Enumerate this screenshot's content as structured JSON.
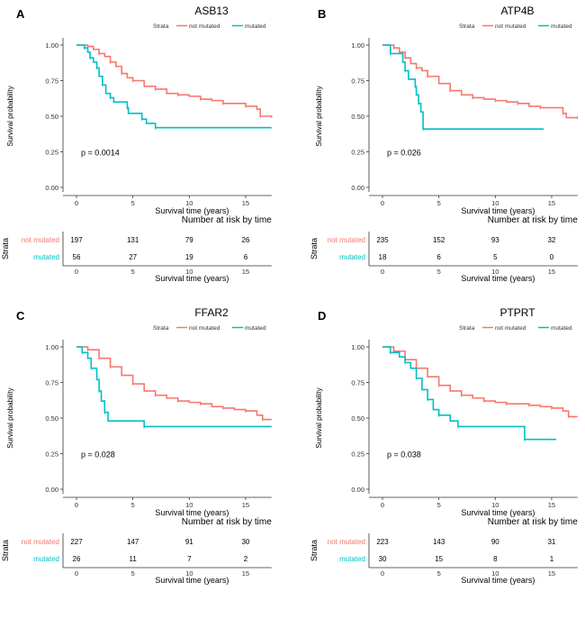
{
  "chart_data": [
    {
      "type": "line",
      "panel_label": "A",
      "title": "ASB13",
      "legend_title": "Strata",
      "legend": [
        "not mutated",
        "mutated"
      ],
      "legend_position": "top-right",
      "xlabel": "Survival time (years)",
      "ylabel": "Survival probability",
      "xticks": [
        0,
        5,
        10,
        15
      ],
      "yticks": [
        "0.00",
        "0.25",
        "0.50",
        "0.75",
        "1.00"
      ],
      "xlim": [
        0,
        17.3
      ],
      "ylim": [
        0,
        1
      ],
      "pvalue": "p = 0.0014",
      "risk_title": "Number at risk by time",
      "risk_ylabel": "Strata",
      "series": [
        {
          "name": "not mutated",
          "color": "#F8766D",
          "risk": [
            197,
            131,
            79,
            26
          ],
          "points": [
            [
              0,
              1
            ],
            [
              1,
              0.99
            ],
            [
              1.5,
              0.97
            ],
            [
              2,
              0.94
            ],
            [
              2.5,
              0.92
            ],
            [
              3,
              0.88
            ],
            [
              3.5,
              0.85
            ],
            [
              4,
              0.8
            ],
            [
              4.5,
              0.77
            ],
            [
              5,
              0.75
            ],
            [
              6,
              0.71
            ],
            [
              7,
              0.69
            ],
            [
              8,
              0.66
            ],
            [
              9,
              0.65
            ],
            [
              10,
              0.64
            ],
            [
              11,
              0.62
            ],
            [
              12,
              0.61
            ],
            [
              13,
              0.59
            ],
            [
              14,
              0.59
            ],
            [
              15,
              0.57
            ],
            [
              16,
              0.55
            ],
            [
              16.3,
              0.5
            ],
            [
              17.3,
              0.49
            ]
          ]
        },
        {
          "name": "mutated",
          "color": "#00BFC4",
          "risk": [
            56,
            27,
            19,
            6
          ],
          "points": [
            [
              0,
              1
            ],
            [
              0.7,
              0.98
            ],
            [
              1,
              0.95
            ],
            [
              1.2,
              0.91
            ],
            [
              1.5,
              0.88
            ],
            [
              1.8,
              0.84
            ],
            [
              2,
              0.78
            ],
            [
              2.3,
              0.72
            ],
            [
              2.6,
              0.66
            ],
            [
              3,
              0.63
            ],
            [
              3.3,
              0.6
            ],
            [
              4.5,
              0.56
            ],
            [
              4.6,
              0.52
            ],
            [
              5.8,
              0.48
            ],
            [
              6.2,
              0.45
            ],
            [
              7,
              0.42
            ],
            [
              17.3,
              0.42
            ]
          ]
        }
      ]
    },
    {
      "type": "line",
      "panel_label": "B",
      "title": "ATP4B",
      "legend_title": "Strata",
      "legend": [
        "not mutated",
        "mutated"
      ],
      "legend_position": "top-right",
      "xlabel": "Survival time (years)",
      "ylabel": "Survival probability",
      "xticks": [
        0,
        5,
        10,
        15
      ],
      "yticks": [
        "0.00",
        "0.25",
        "0.50",
        "0.75",
        "1.00"
      ],
      "xlim": [
        0,
        17.3
      ],
      "ylim": [
        0,
        1
      ],
      "pvalue": "p = 0.026",
      "risk_title": "Number at risk by time",
      "risk_ylabel": "Strata",
      "series": [
        {
          "name": "not mutated",
          "color": "#F8766D",
          "risk": [
            235,
            152,
            93,
            32
          ],
          "points": [
            [
              0,
              1
            ],
            [
              1,
              0.98
            ],
            [
              1.5,
              0.95
            ],
            [
              2,
              0.91
            ],
            [
              2.5,
              0.87
            ],
            [
              3,
              0.84
            ],
            [
              3.5,
              0.82
            ],
            [
              4,
              0.78
            ],
            [
              5,
              0.73
            ],
            [
              6,
              0.68
            ],
            [
              7,
              0.65
            ],
            [
              8,
              0.63
            ],
            [
              9,
              0.62
            ],
            [
              10,
              0.61
            ],
            [
              11,
              0.6
            ],
            [
              12,
              0.59
            ],
            [
              13,
              0.57
            ],
            [
              14,
              0.56
            ],
            [
              15,
              0.56
            ],
            [
              16,
              0.52
            ],
            [
              16.3,
              0.49
            ],
            [
              17.3,
              0.49
            ]
          ]
        },
        {
          "name": "mutated",
          "color": "#00BFC4",
          "risk": [
            18,
            6,
            5,
            0
          ],
          "points": [
            [
              0,
              1
            ],
            [
              0.7,
              0.94
            ],
            [
              1.8,
              0.88
            ],
            [
              2,
              0.82
            ],
            [
              2.3,
              0.76
            ],
            [
              2.9,
              0.71
            ],
            [
              3,
              0.65
            ],
            [
              3.2,
              0.59
            ],
            [
              3.4,
              0.53
            ],
            [
              3.6,
              0.41
            ],
            [
              14.3,
              0.41
            ]
          ]
        }
      ]
    },
    {
      "type": "line",
      "panel_label": "C",
      "title": "FFAR2",
      "legend_title": "Strata",
      "legend": [
        "not mutated",
        "mutated"
      ],
      "legend_position": "top-right",
      "xlabel": "Survival time (years)",
      "ylabel": "Survival probability",
      "xticks": [
        0,
        5,
        10,
        15
      ],
      "yticks": [
        "0.00",
        "0.25",
        "0.50",
        "0.75",
        "1.00"
      ],
      "xlim": [
        0,
        17.3
      ],
      "ylim": [
        0,
        1
      ],
      "pvalue": "p = 0.028",
      "risk_title": "Number at risk by time",
      "risk_ylabel": "Strata",
      "series": [
        {
          "name": "not mutated",
          "color": "#F8766D",
          "risk": [
            227,
            147,
            91,
            30
          ],
          "points": [
            [
              0,
              1
            ],
            [
              1,
              0.98
            ],
            [
              2,
              0.92
            ],
            [
              3,
              0.86
            ],
            [
              4,
              0.8
            ],
            [
              5,
              0.74
            ],
            [
              6,
              0.69
            ],
            [
              7,
              0.66
            ],
            [
              8,
              0.64
            ],
            [
              9,
              0.62
            ],
            [
              10,
              0.61
            ],
            [
              11,
              0.6
            ],
            [
              12,
              0.58
            ],
            [
              13,
              0.57
            ],
            [
              14,
              0.56
            ],
            [
              15,
              0.55
            ],
            [
              16,
              0.52
            ],
            [
              16.5,
              0.49
            ],
            [
              17.3,
              0.49
            ]
          ]
        },
        {
          "name": "mutated",
          "color": "#00BFC4",
          "risk": [
            26,
            11,
            7,
            2
          ],
          "points": [
            [
              0,
              1
            ],
            [
              0.5,
              0.96
            ],
            [
              1,
              0.92
            ],
            [
              1.3,
              0.85
            ],
            [
              1.8,
              0.77
            ],
            [
              2,
              0.69
            ],
            [
              2.2,
              0.62
            ],
            [
              2.5,
              0.54
            ],
            [
              2.8,
              0.48
            ],
            [
              6,
              0.44
            ],
            [
              17.3,
              0.44
            ]
          ]
        }
      ]
    },
    {
      "type": "line",
      "panel_label": "D",
      "title": "PTPRT",
      "legend_title": "Strata",
      "legend": [
        "not mutated",
        "mutated"
      ],
      "legend_position": "top-right",
      "xlabel": "Survival time (years)",
      "ylabel": "Survival probability",
      "xticks": [
        0,
        5,
        10,
        15
      ],
      "yticks": [
        "0.00",
        "0.25",
        "0.50",
        "0.75",
        "1.00"
      ],
      "xlim": [
        0,
        17.3
      ],
      "ylim": [
        0,
        1
      ],
      "pvalue": "p = 0.038",
      "risk_title": "Number at risk by time",
      "risk_ylabel": "Strata",
      "series": [
        {
          "name": "not mutated",
          "color": "#F8766D",
          "risk": [
            223,
            143,
            90,
            31
          ],
          "points": [
            [
              0,
              1
            ],
            [
              1,
              0.97
            ],
            [
              2,
              0.91
            ],
            [
              3,
              0.85
            ],
            [
              4,
              0.79
            ],
            [
              5,
              0.73
            ],
            [
              6,
              0.69
            ],
            [
              7,
              0.66
            ],
            [
              8,
              0.64
            ],
            [
              9,
              0.62
            ],
            [
              10,
              0.61
            ],
            [
              11,
              0.6
            ],
            [
              12,
              0.6
            ],
            [
              13,
              0.59
            ],
            [
              14,
              0.58
            ],
            [
              15,
              0.57
            ],
            [
              16,
              0.55
            ],
            [
              16.5,
              0.51
            ],
            [
              17.3,
              0.51
            ]
          ]
        },
        {
          "name": "mutated",
          "color": "#00BFC4",
          "risk": [
            30,
            15,
            8,
            1
          ],
          "points": [
            [
              0,
              1
            ],
            [
              0.7,
              0.96
            ],
            [
              1.5,
              0.93
            ],
            [
              2,
              0.89
            ],
            [
              2.5,
              0.85
            ],
            [
              3,
              0.78
            ],
            [
              3.5,
              0.7
            ],
            [
              4,
              0.63
            ],
            [
              4.5,
              0.56
            ],
            [
              5,
              0.52
            ],
            [
              6,
              0.48
            ],
            [
              6.7,
              0.44
            ],
            [
              12.5,
              0.44
            ],
            [
              12.6,
              0.35
            ],
            [
              15.4,
              0.35
            ]
          ]
        }
      ]
    }
  ]
}
